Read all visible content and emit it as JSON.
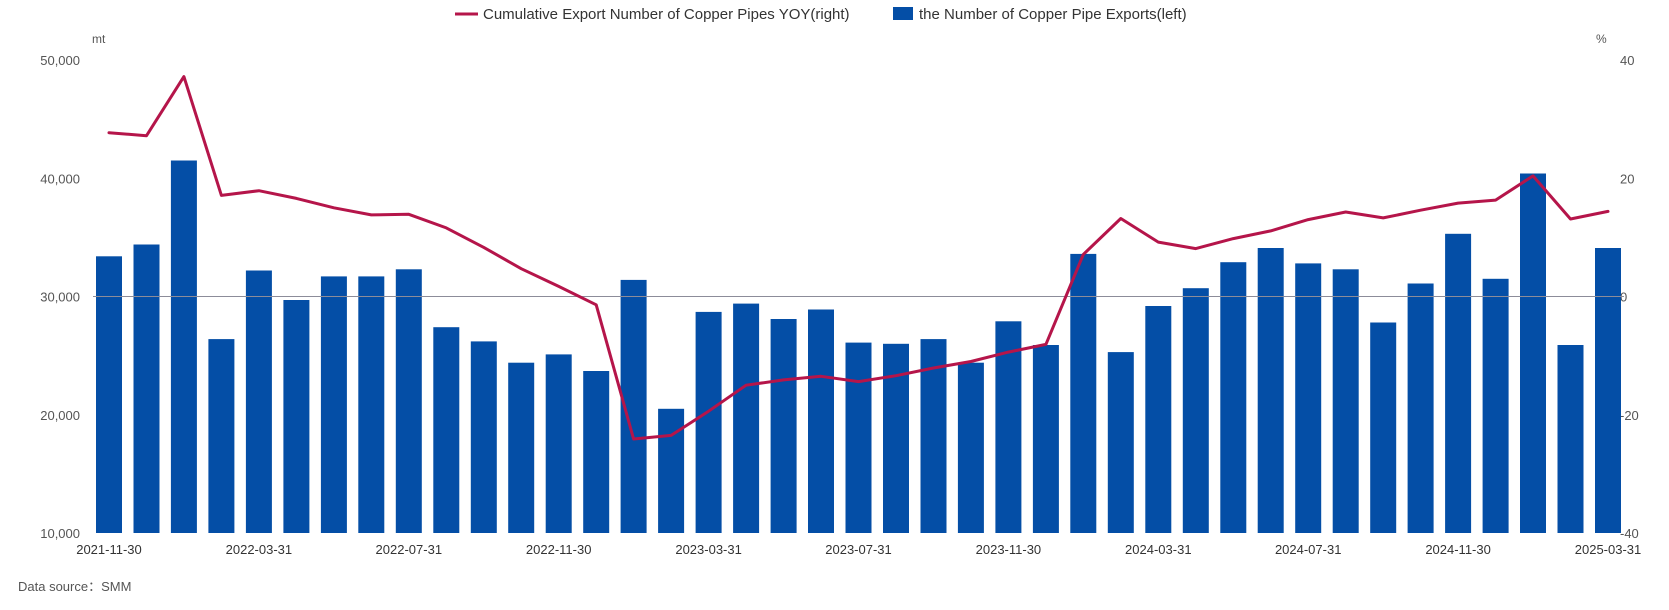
{
  "chart_data": {
    "type": "bar+line",
    "legend": {
      "placement": "top-center",
      "items": [
        {
          "label": "Cumulative Export Number of Copper Pipes YOY(right)",
          "marker": "line"
        },
        {
          "label": "the Number of Copper Pipe Exports(left)",
          "marker": "box"
        }
      ]
    },
    "left_axis": {
      "unit": "mt",
      "range": [
        10000,
        50000
      ],
      "ticks": [
        10000,
        20000,
        30000,
        40000,
        50000
      ],
      "tick_labels": [
        "10,000",
        "20,000",
        "30,000",
        "40,000",
        "50,000"
      ]
    },
    "right_axis": {
      "unit": "%",
      "range": [
        -40,
        40
      ],
      "ticks": [
        -40,
        -20,
        0,
        20,
        40
      ],
      "tick_labels": [
        "-40",
        "-20",
        "0",
        "20",
        "40"
      ]
    },
    "x_axis": {
      "labels": [
        "2021-11-30",
        "2022-03-31",
        "2022-07-31",
        "2022-11-30",
        "2023-03-31",
        "2023-07-31",
        "2023-11-30",
        "2024-03-31",
        "2024-07-31",
        "2024-11-30",
        "2025-03-31"
      ],
      "label_positions": [
        0,
        4,
        8,
        12,
        16,
        20,
        24,
        28,
        32,
        36,
        40
      ]
    },
    "reference_line": {
      "axis": "right",
      "value": 0
    },
    "grid": false,
    "series": [
      {
        "name": "the Number of Copper Pipe Exports(left)",
        "type": "bar",
        "axis": "left",
        "color": "#044EA6",
        "values": [
          33400,
          34400,
          41500,
          26400,
          32200,
          29700,
          31700,
          31700,
          32300,
          27400,
          26200,
          24400,
          25100,
          23700,
          31400,
          20500,
          28700,
          29400,
          28100,
          28900,
          26100,
          26000,
          26400,
          24400,
          27900,
          25900,
          33600,
          25300,
          29200,
          30700,
          32900,
          34100,
          32800,
          32300,
          27800,
          31100,
          35300,
          31500,
          40400,
          25900,
          34100
        ]
      },
      {
        "name": "Cumulative Export Number of Copper Pipes YOY(right)",
        "type": "line",
        "axis": "right",
        "color": "#B5154A",
        "values": [
          27.7,
          27.2,
          37.2,
          17.1,
          17.9,
          16.6,
          15.0,
          13.8,
          13.9,
          11.6,
          8.3,
          4.7,
          1.7,
          -1.4,
          -24.1,
          -23.5,
          -19.4,
          -15.0,
          -14.1,
          -13.5,
          -14.4,
          -13.4,
          -12.1,
          -11.0,
          -9.4,
          -8.1,
          7.1,
          13.2,
          9.2,
          8.1,
          9.8,
          11.1,
          13.0,
          14.3,
          13.3,
          14.6,
          15.8,
          16.3,
          20.4,
          13.1,
          14.4
        ]
      }
    ]
  },
  "footer": {
    "source_text": "Data source：SMM"
  }
}
